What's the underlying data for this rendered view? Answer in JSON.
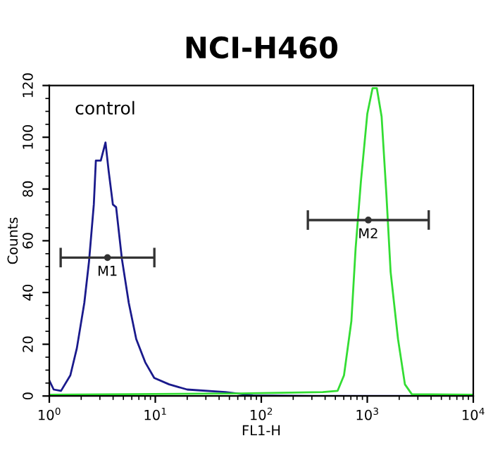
{
  "chart_data": {
    "type": "line",
    "title": "NCI-H460",
    "xlabel": "FL1-H",
    "ylabel": "Counts",
    "log": "x",
    "xlim": [
      1,
      10000
    ],
    "xticks": [
      {
        "value": 1,
        "label": "10$^{0}$"
      },
      {
        "value": 10,
        "label": "10$^{1}$"
      },
      {
        "value": 100,
        "label": "10$^{2}$"
      },
      {
        "value": 1000,
        "label": "10$^{3}$"
      },
      {
        "value": 10000,
        "label": "10$^{4}$"
      }
    ],
    "ylim": [
      0,
      120
    ],
    "yticks": [
      0,
      20,
      40,
      60,
      80,
      100,
      120
    ],
    "grid": false,
    "legend": false,
    "annotations": [
      "control",
      {
        "text": "M1",
        "x": 3.54,
        "y": 53.5
      },
      {
        "text": "M2",
        "x": 1022,
        "y": 68
      }
    ],
    "series": [
      {
        "color": "#1a1a8c",
        "x": [
          1,
          1.1,
          1.29,
          1.58,
          1.82,
          2.14,
          2.37,
          2.63,
          2.75,
          3.06,
          3.39,
          3.63,
          3.98,
          4.27,
          4.84,
          5.62,
          6.61,
          8.04,
          9.77,
          13.5,
          20,
          45.7,
          83,
          316,
          10000
        ],
        "values": [
          6,
          2.5,
          2,
          8,
          18.5,
          36,
          52,
          74,
          91,
          91,
          98,
          87,
          74,
          73,
          53,
          36,
          22,
          13,
          7,
          4.5,
          2.5,
          1.5,
          0.2,
          0,
          0
        ]
      },
      {
        "color": "#33dd33",
        "x": [
          1,
          61.7,
          380,
          525,
          603,
          708,
          776,
          871,
          1000,
          1122,
          1230,
          1365,
          1514,
          1660,
          1950,
          2265,
          2630,
          10000
        ],
        "values": [
          0.5,
          1,
          1.5,
          2,
          8,
          29,
          57,
          83,
          109,
          119,
          119,
          108,
          78,
          48,
          22,
          4.5,
          0.7,
          0.5
        ]
      },
      {
        "type": "scatter",
        "marker": "circle",
        "color": "#333333",
        "x": [
          3.54
        ],
        "values": [
          53.5
        ],
        "xerrors": [
          [
            1.28,
            9.8
          ]
        ]
      },
      {
        "type": "scatter",
        "marker": "circle",
        "color": "#333333",
        "x": [
          1022
        ],
        "values": [
          68
        ],
        "xerrors": [
          [
            275,
            3800
          ]
        ]
      }
    ]
  }
}
